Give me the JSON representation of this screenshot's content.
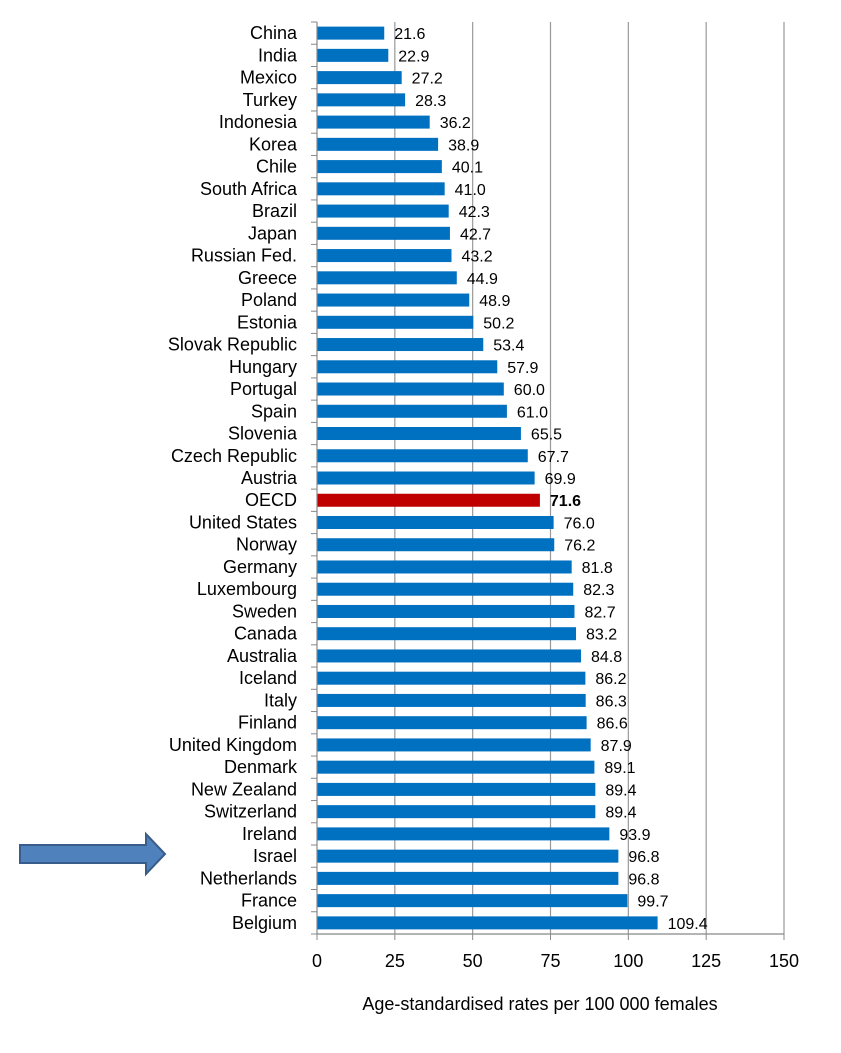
{
  "chart_data": {
    "type": "bar",
    "orientation": "horizontal",
    "title": "",
    "xlabel": "Age-standardised rates per 100 000 females",
    "ylabel": "",
    "xlim": [
      0,
      150
    ],
    "xticks": [
      0,
      25,
      50,
      75,
      100,
      125,
      150
    ],
    "grid": "vertical",
    "categories": [
      "China",
      "India",
      "Mexico",
      "Turkey",
      "Indonesia",
      "Korea",
      "Chile",
      "South Africa",
      "Brazil",
      "Japan",
      "Russian Fed.",
      "Greece",
      "Poland",
      "Estonia",
      "Slovak Republic",
      "Hungary",
      "Portugal",
      "Spain",
      "Slovenia",
      "Czech Republic",
      "Austria",
      "OECD",
      "United States",
      "Norway",
      "Germany",
      "Luxembourg",
      "Sweden",
      "Canada",
      "Australia",
      "Iceland",
      "Italy",
      "Finland",
      "United Kingdom",
      "Denmark",
      "New Zealand",
      "Switzerland",
      "Ireland",
      "Israel",
      "Netherlands",
      "France",
      "Belgium"
    ],
    "values": [
      21.6,
      22.9,
      27.2,
      28.3,
      36.2,
      38.9,
      40.1,
      41.0,
      42.3,
      42.7,
      43.2,
      44.9,
      48.9,
      50.2,
      53.4,
      57.9,
      60.0,
      61.0,
      65.5,
      67.7,
      69.9,
      71.6,
      76.0,
      76.2,
      81.8,
      82.3,
      82.7,
      83.2,
      84.8,
      86.2,
      86.3,
      86.6,
      87.9,
      89.1,
      89.4,
      89.4,
      93.9,
      96.8,
      96.8,
      99.7,
      109.4
    ],
    "highlight": "OECD",
    "annotation_arrow_target": "Israel",
    "colors": {
      "bar": "#0070C0",
      "highlight": "#C00000",
      "arrow": "#4F81BD",
      "arrow_border": "#385D8A",
      "grid": "#999999"
    }
  }
}
